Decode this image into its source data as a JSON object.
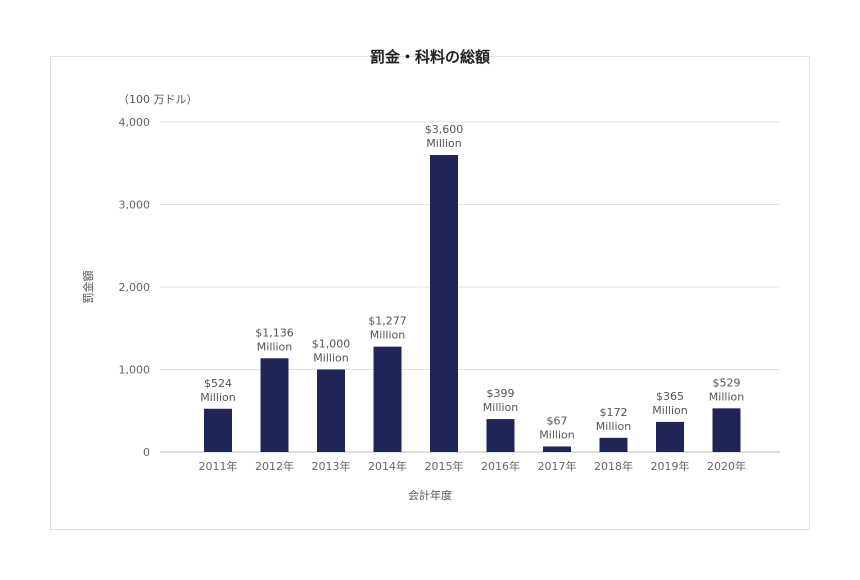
{
  "chart_data": {
    "type": "bar",
    "title": "罰金・科料の総額",
    "unit_note": "（100 万ドル）",
    "xlabel": "会計年度",
    "ylabel": "罰金額",
    "ylim": [
      0,
      4000
    ],
    "yticks": [
      "0",
      "1,000",
      "2,000",
      "3,000",
      "4,000"
    ],
    "ytick_values": [
      0,
      1000,
      2000,
      3000,
      4000
    ],
    "categories": [
      "2011年",
      "2012年",
      "2013年",
      "2014年",
      "2015年",
      "2016年",
      "2017年",
      "2018年",
      "2019年",
      "2020年"
    ],
    "values": [
      524,
      1136,
      1000,
      1277,
      3600,
      399,
      67,
      172,
      365,
      529
    ],
    "data_labels": [
      [
        "$524",
        "Million"
      ],
      [
        "$1,136",
        "Million"
      ],
      [
        "$1,000",
        "Million"
      ],
      [
        "$1,277",
        "Million"
      ],
      [
        "$3,600",
        "Million"
      ],
      [
        "$399",
        "Million"
      ],
      [
        "$67",
        "Million"
      ],
      [
        "$172",
        "Million"
      ],
      [
        "$365",
        "Million"
      ],
      [
        "$529",
        "Million"
      ]
    ],
    "bar_color": "#1f2557",
    "grid": true,
    "legend": "none"
  }
}
